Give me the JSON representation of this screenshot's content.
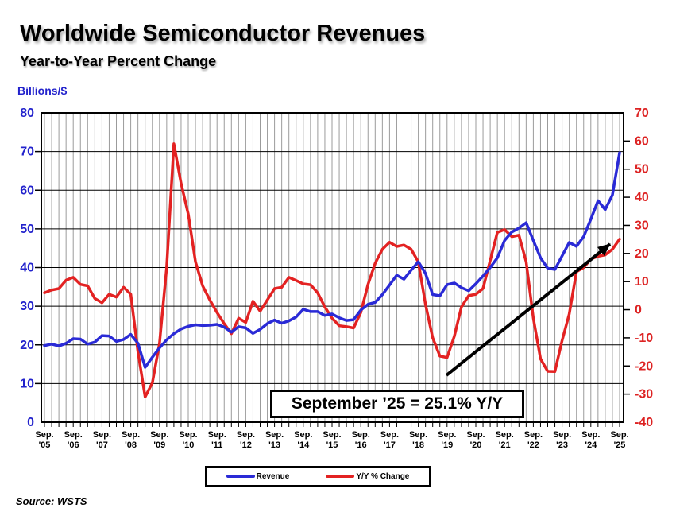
{
  "header": {
    "title": "Worldwide Semiconductor Revenues",
    "subtitle": "Year-to-Year Percent Change"
  },
  "annotation": {
    "text": "September ’25 = 25.1% Y/Y"
  },
  "legend": {
    "items": [
      {
        "label": "Revenue"
      },
      {
        "label": "Y/Y % Change"
      }
    ]
  },
  "source": {
    "text": "Source: WSTS"
  },
  "colors": {
    "revenue_line": "#2a2ad6",
    "yoy_line": "#e32222",
    "left_axis_text": "#2222cc",
    "right_axis_text": "#dd2222",
    "grid_vertical": "#9b9b9b",
    "grid_horizontal": "#000000",
    "arrow": "#000000"
  },
  "chart_data": {
    "type": "line",
    "title": "Worldwide Semiconductor Revenues",
    "subtitle": "Year-to-Year Percent Change",
    "x_interval": "quarterly",
    "x_start": "Sep 2005",
    "x_end": "Sep 2025",
    "x_month_label": "Sep.",
    "x_year_labels": [
      "'05",
      "'06",
      "'07",
      "'08",
      "'09",
      "'10",
      "'11",
      "'12",
      "'13",
      "'14",
      "'15",
      "'16",
      "'17",
      "'18",
      "'19",
      "'20",
      "'21",
      "'22",
      "'23",
      "'24",
      "'25"
    ],
    "left_axis": {
      "label": "Billions/$",
      "min": 0,
      "max": 80,
      "tick": 10
    },
    "right_axis": {
      "label": "Y/Y % Change",
      "min": -40,
      "max": 70,
      "tick": 10
    },
    "grid": {
      "vertical": "quarterly",
      "horizontal": "every 10 on left axis"
    },
    "legend_position": "bottom",
    "series": [
      {
        "name": "Revenue",
        "axis": "left",
        "units": "US$ billions per month (3-month average)",
        "values": [
          19.8,
          20.2,
          19.7,
          20.4,
          21.6,
          21.5,
          20.2,
          20.7,
          22.4,
          22.3,
          20.9,
          21.4,
          22.7,
          20.4,
          14.2,
          16.8,
          19.2,
          21.3,
          22.9,
          24.1,
          24.8,
          25.2,
          25.0,
          25.1,
          25.3,
          24.6,
          23.3,
          24.7,
          24.4,
          23.0,
          24.0,
          25.5,
          26.4,
          25.6,
          26.2,
          27.2,
          29.2,
          28.6,
          28.6,
          27.6,
          28.0,
          27.0,
          26.3,
          26.5,
          29.0,
          30.5,
          31.0,
          33.0,
          35.5,
          38.0,
          37.0,
          39.3,
          41.5,
          38.5,
          33.0,
          32.7,
          35.6,
          36.0,
          34.8,
          34.0,
          35.8,
          37.8,
          40.0,
          42.5,
          47.0,
          49.2,
          50.2,
          51.6,
          47.0,
          42.5,
          39.8,
          39.5,
          43.0,
          46.5,
          45.5,
          48.0,
          52.5,
          57.3,
          55.0,
          58.8,
          69.7
        ]
      },
      {
        "name": "Y/Y % Change",
        "axis": "right",
        "units": "percent",
        "values": [
          6.0,
          7.0,
          7.5,
          10.5,
          11.5,
          9.0,
          8.5,
          4.0,
          2.5,
          5.5,
          4.5,
          8.0,
          5.5,
          -15.0,
          -31.0,
          -26.0,
          -12.0,
          15.0,
          59.0,
          45.0,
          34.0,
          17.0,
          8.5,
          3.5,
          -1.0,
          -5.0,
          -8.5,
          -3.0,
          -4.5,
          3.0,
          -0.5,
          3.5,
          7.5,
          8.0,
          11.5,
          10.4,
          9.2,
          8.9,
          6.0,
          1.0,
          -3.0,
          -5.7,
          -6.0,
          -6.5,
          -1.0,
          9.0,
          16.5,
          21.5,
          24.0,
          22.5,
          23.0,
          21.5,
          17.0,
          2.0,
          -10.0,
          -16.5,
          -17.0,
          -9.5,
          1.0,
          5.0,
          5.5,
          7.5,
          17.5,
          27.5,
          28.5,
          26.0,
          26.5,
          17.0,
          -3.0,
          -17.5,
          -21.9,
          -22.0,
          -11.0,
          -1.5,
          13.5,
          15.0,
          18.0,
          19.0,
          19.5,
          21.5,
          25.1
        ]
      }
    ],
    "annotations": [
      {
        "text": "September ’25 = 25.1% Y/Y",
        "arrow_to": "end of Y/Y % Change series"
      }
    ]
  }
}
